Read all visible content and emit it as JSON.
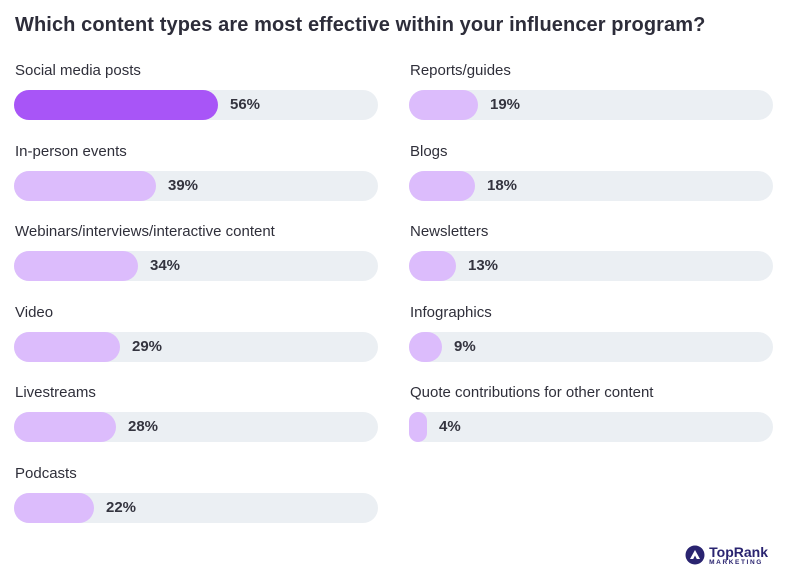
{
  "chart_data": {
    "type": "bar",
    "orientation": "horizontal",
    "title": "Which content types are most effective within your influencer program?",
    "xlim": [
      0,
      100
    ],
    "value_suffix": "%",
    "columns": [
      [
        {
          "label": "Social media posts",
          "value": 56
        },
        {
          "label": "In-person events",
          "value": 39
        },
        {
          "label": "Webinars/interviews/interactive content",
          "value": 34
        },
        {
          "label": "Video",
          "value": 29
        },
        {
          "label": "Livestreams",
          "value": 28
        },
        {
          "label": "Podcasts",
          "value": 22
        }
      ],
      [
        {
          "label": "Reports/guides",
          "value": 19
        },
        {
          "label": "Blogs",
          "value": 18
        },
        {
          "label": "Newsletters",
          "value": 13
        },
        {
          "label": "Infographics",
          "value": 9
        },
        {
          "label": "Quote contributions for other content",
          "value": 4
        }
      ]
    ],
    "colors": {
      "highlight": "#a855f7",
      "bar": "#dcbcfc",
      "track": "#ebeff3"
    }
  },
  "brand": {
    "name": "TopRank",
    "tagline": "MARKETING",
    "icon": "toprank-logo-icon"
  }
}
